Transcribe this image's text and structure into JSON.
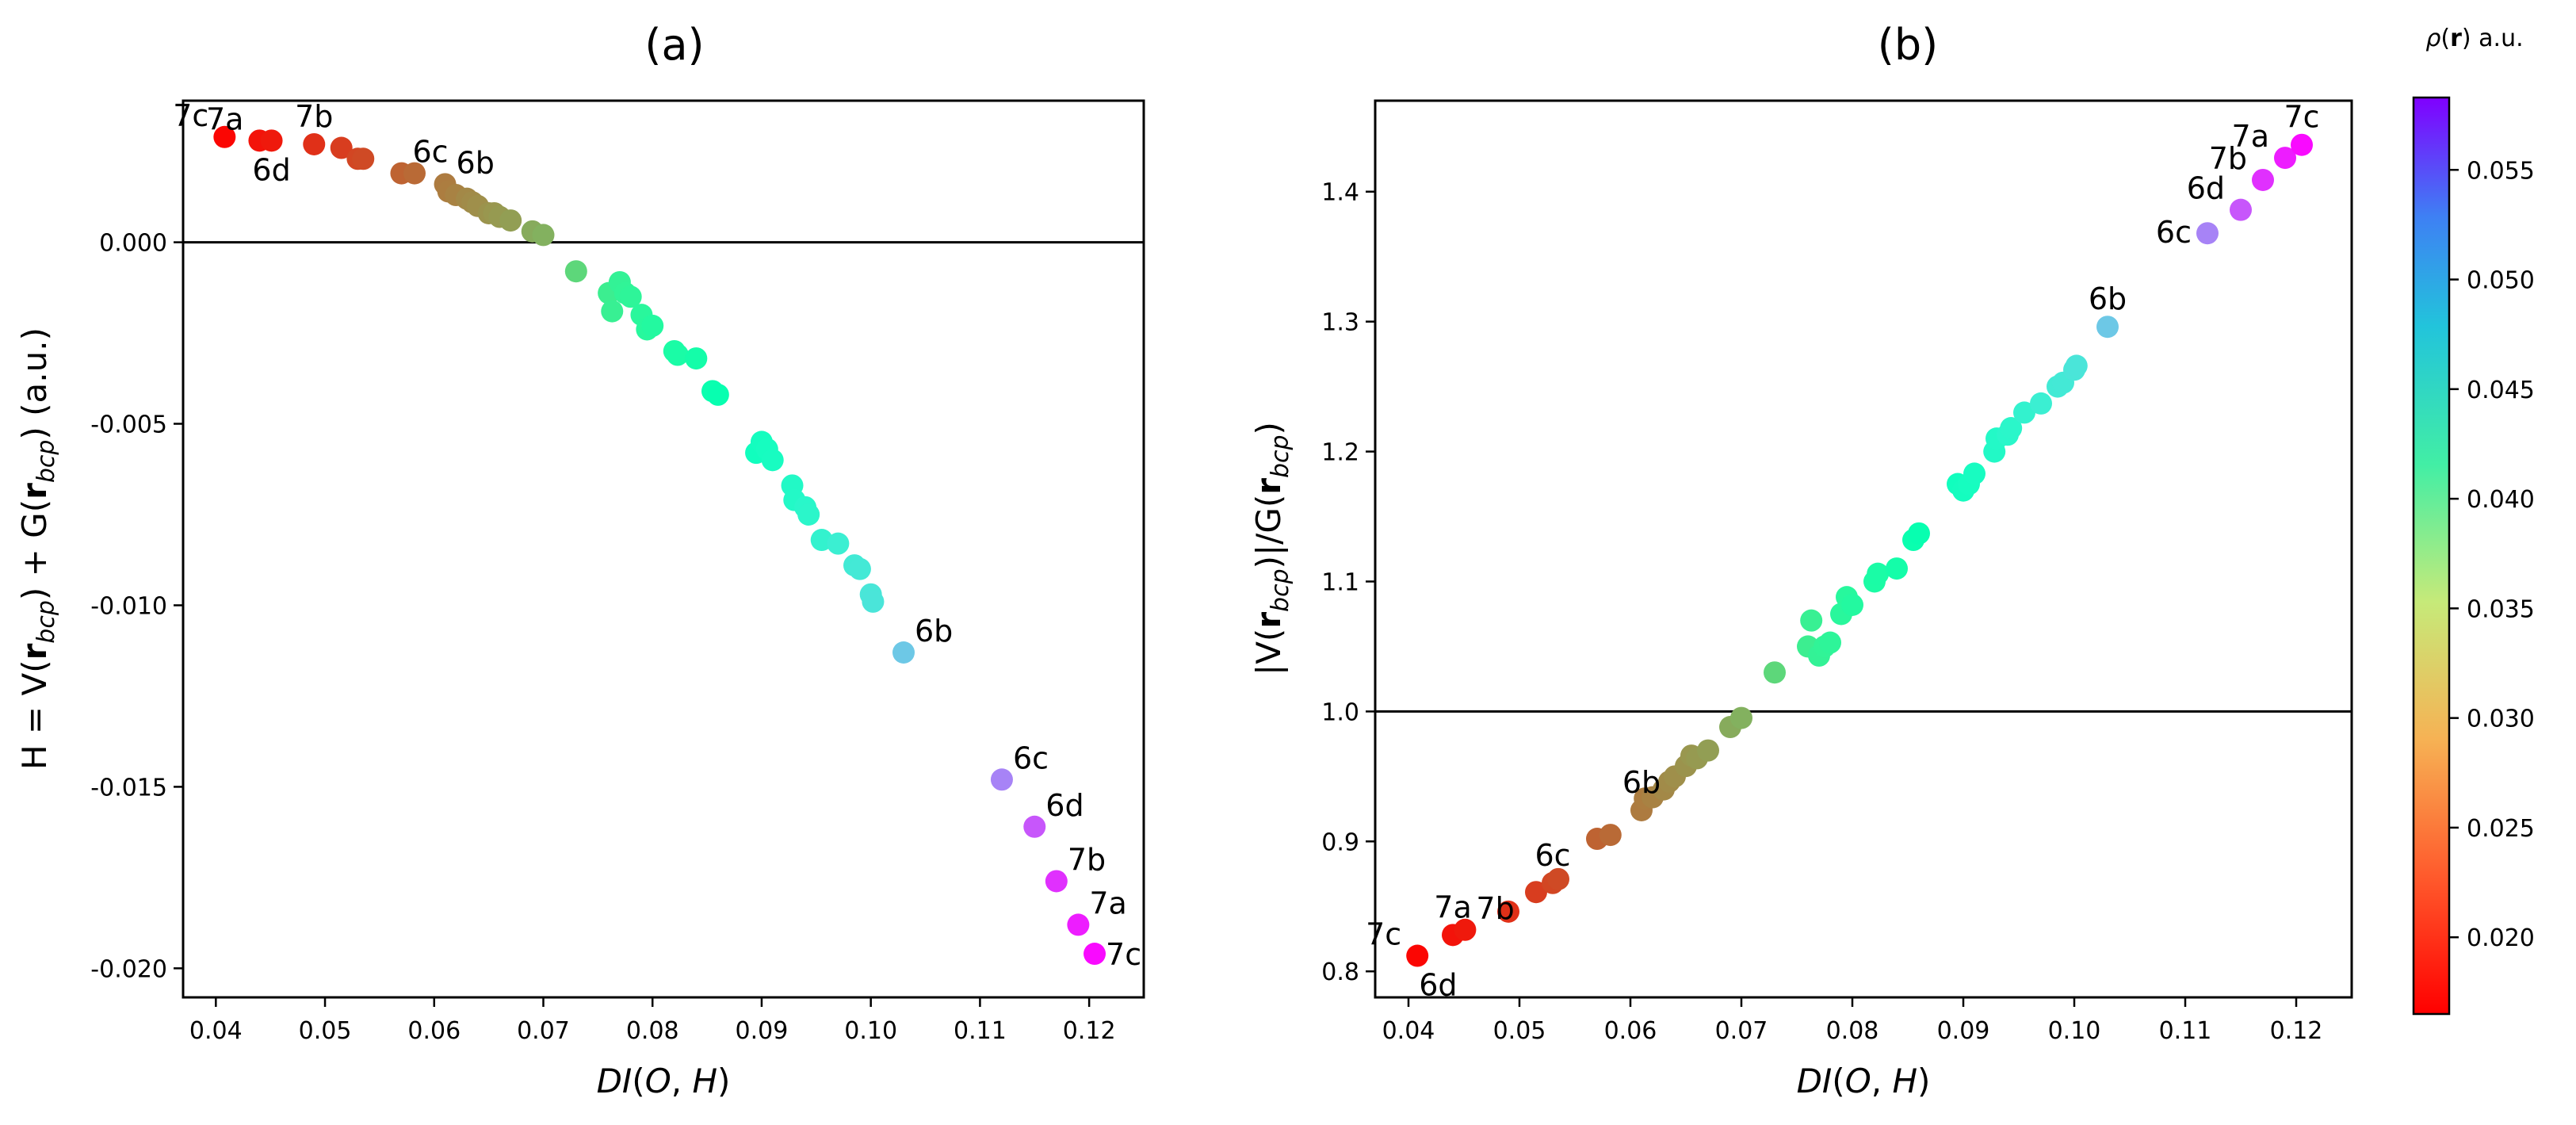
{
  "chart_data": [
    {
      "type": "scatter",
      "panel": "(a)",
      "title": "(a)",
      "xlabel": "DI(O, H)",
      "ylabel": "H = V(r_bcp) + G(r_bcp) (a.u.)",
      "xlim": [
        0.037,
        0.125
      ],
      "ylim": [
        -0.0208,
        0.0039
      ],
      "x_ticks": [
        0.04,
        0.05,
        0.06,
        0.07,
        0.08,
        0.09,
        0.1,
        0.11,
        0.12
      ],
      "x_tick_labels": [
        "0.04",
        "0.05",
        "0.06",
        "0.07",
        "0.08",
        "0.09",
        "0.10",
        "0.11",
        "0.12"
      ],
      "y_ticks": [
        0.0,
        -0.005,
        -0.01,
        -0.015,
        -0.02
      ],
      "y_tick_labels": [
        "0.000",
        "-0.005",
        "-0.010",
        "-0.015",
        "-0.020"
      ],
      "reference_line_y": 0.0,
      "color_by": "rho",
      "points": [
        {
          "x": 0.0408,
          "y": 0.0029,
          "rho": 0.0168
        },
        {
          "x": 0.044,
          "y": 0.0028,
          "rho": 0.0175
        },
        {
          "x": 0.0451,
          "y": 0.0028,
          "rho": 0.0178
        },
        {
          "x": 0.049,
          "y": 0.0027,
          "rho": 0.019
        },
        {
          "x": 0.0515,
          "y": 0.0026,
          "rho": 0.0197
        },
        {
          "x": 0.053,
          "y": 0.0023,
          "rho": 0.0202
        },
        {
          "x": 0.0535,
          "y": 0.0023,
          "rho": 0.0204
        },
        {
          "x": 0.057,
          "y": 0.0019,
          "rho": 0.0218
        },
        {
          "x": 0.0582,
          "y": 0.0019,
          "rho": 0.0222
        },
        {
          "x": 0.061,
          "y": 0.0016,
          "rho": 0.0232
        },
        {
          "x": 0.0613,
          "y": 0.0014,
          "rho": 0.0233
        },
        {
          "x": 0.062,
          "y": 0.0013,
          "rho": 0.0236
        },
        {
          "x": 0.063,
          "y": 0.0012,
          "rho": 0.024
        },
        {
          "x": 0.0635,
          "y": 0.0011,
          "rho": 0.0242
        },
        {
          "x": 0.064,
          "y": 0.001,
          "rho": 0.0244
        },
        {
          "x": 0.065,
          "y": 0.0008,
          "rho": 0.0247
        },
        {
          "x": 0.0655,
          "y": 0.0008,
          "rho": 0.0249
        },
        {
          "x": 0.066,
          "y": 0.0007,
          "rho": 0.0251
        },
        {
          "x": 0.067,
          "y": 0.0006,
          "rho": 0.0254
        },
        {
          "x": 0.069,
          "y": 0.0003,
          "rho": 0.0263
        },
        {
          "x": 0.07,
          "y": 0.0002,
          "rho": 0.0267
        },
        {
          "x": 0.073,
          "y": -0.0008,
          "rho": 0.0298
        },
        {
          "x": 0.076,
          "y": -0.0014,
          "rho": 0.0325
        },
        {
          "x": 0.0763,
          "y": -0.0019,
          "rho": 0.0328
        },
        {
          "x": 0.077,
          "y": -0.0011,
          "rho": 0.0332
        },
        {
          "x": 0.0775,
          "y": -0.0014,
          "rho": 0.0334
        },
        {
          "x": 0.078,
          "y": -0.0015,
          "rho": 0.0336
        },
        {
          "x": 0.079,
          "y": -0.002,
          "rho": 0.034
        },
        {
          "x": 0.0795,
          "y": -0.0024,
          "rho": 0.0342
        },
        {
          "x": 0.08,
          "y": -0.0023,
          "rho": 0.0345
        },
        {
          "x": 0.082,
          "y": -0.003,
          "rho": 0.0352
        },
        {
          "x": 0.0823,
          "y": -0.0031,
          "rho": 0.0353
        },
        {
          "x": 0.084,
          "y": -0.0032,
          "rho": 0.0358
        },
        {
          "x": 0.0855,
          "y": -0.0041,
          "rho": 0.0366
        },
        {
          "x": 0.086,
          "y": -0.0042,
          "rho": 0.0368
        },
        {
          "x": 0.0895,
          "y": -0.0058,
          "rho": 0.0388
        },
        {
          "x": 0.09,
          "y": -0.0055,
          "rho": 0.039
        },
        {
          "x": 0.0905,
          "y": -0.0057,
          "rho": 0.0392
        },
        {
          "x": 0.091,
          "y": -0.006,
          "rho": 0.0394
        },
        {
          "x": 0.0928,
          "y": -0.0067,
          "rho": 0.0402
        },
        {
          "x": 0.093,
          "y": -0.0071,
          "rho": 0.0403
        },
        {
          "x": 0.094,
          "y": -0.0073,
          "rho": 0.0408
        },
        {
          "x": 0.0943,
          "y": -0.0075,
          "rho": 0.0409
        },
        {
          "x": 0.0955,
          "y": -0.0082,
          "rho": 0.0416
        },
        {
          "x": 0.097,
          "y": -0.0083,
          "rho": 0.0422
        },
        {
          "x": 0.0985,
          "y": -0.0089,
          "rho": 0.0428
        },
        {
          "x": 0.099,
          "y": -0.009,
          "rho": 0.043
        },
        {
          "x": 0.1,
          "y": -0.0097,
          "rho": 0.0434
        },
        {
          "x": 0.1002,
          "y": -0.0099,
          "rho": 0.0435
        },
        {
          "x": 0.103,
          "y": -0.0113,
          "rho": 0.0463
        },
        {
          "x": 0.112,
          "y": -0.0148,
          "rho": 0.0511
        },
        {
          "x": 0.115,
          "y": -0.0161,
          "rho": 0.0537
        },
        {
          "x": 0.117,
          "y": -0.0176,
          "rho": 0.0558
        },
        {
          "x": 0.119,
          "y": -0.0188,
          "rho": 0.0568
        },
        {
          "x": 0.1205,
          "y": -0.0196,
          "rho": 0.0578
        }
      ],
      "annotations": [
        {
          "text": "7c",
          "x": 0.0408,
          "y": 0.0029,
          "pos": "upper-left"
        },
        {
          "text": "7a",
          "x": 0.044,
          "y": 0.0028,
          "pos": "upper-left"
        },
        {
          "text": "6d",
          "x": 0.0451,
          "y": 0.0028,
          "pos": "below"
        },
        {
          "text": "7b",
          "x": 0.049,
          "y": 0.0027,
          "pos": "above"
        },
        {
          "text": "6c",
          "x": 0.057,
          "y": 0.0019,
          "pos": "upper-right"
        },
        {
          "text": "6b",
          "x": 0.061,
          "y": 0.0016,
          "pos": "upper-right"
        },
        {
          "text": "6b",
          "x": 0.103,
          "y": -0.0113,
          "pos": "upper-right"
        },
        {
          "text": "6c",
          "x": 0.112,
          "y": -0.0148,
          "pos": "upper-right"
        },
        {
          "text": "6d",
          "x": 0.115,
          "y": -0.0161,
          "pos": "upper-right"
        },
        {
          "text": "7b",
          "x": 0.117,
          "y": -0.0176,
          "pos": "upper-right"
        },
        {
          "text": "7a",
          "x": 0.119,
          "y": -0.0188,
          "pos": "upper-right"
        },
        {
          "text": "7c",
          "x": 0.1205,
          "y": -0.0196,
          "pos": "right"
        }
      ]
    },
    {
      "type": "scatter",
      "panel": "(b)",
      "title": "(b)",
      "xlabel": "DI(O, H)",
      "ylabel": "|V(r_bcp)|/G(r_bcp)",
      "xlim": [
        0.037,
        0.125
      ],
      "ylim": [
        0.78,
        1.47
      ],
      "x_ticks": [
        0.04,
        0.05,
        0.06,
        0.07,
        0.08,
        0.09,
        0.1,
        0.11,
        0.12
      ],
      "x_tick_labels": [
        "0.04",
        "0.05",
        "0.06",
        "0.07",
        "0.08",
        "0.09",
        "0.10",
        "0.11",
        "0.12"
      ],
      "y_ticks": [
        0.8,
        0.9,
        1.0,
        1.1,
        1.2,
        1.3,
        1.4
      ],
      "y_tick_labels": [
        "0.8",
        "0.9",
        "1.0",
        "1.1",
        "1.2",
        "1.3",
        "1.4"
      ],
      "reference_line_y": 1.0,
      "color_by": "rho",
      "points": [
        {
          "x": 0.0408,
          "y": 0.812,
          "rho": 0.0168
        },
        {
          "x": 0.044,
          "y": 0.828,
          "rho": 0.0175
        },
        {
          "x": 0.0451,
          "y": 0.832,
          "rho": 0.0178
        },
        {
          "x": 0.049,
          "y": 0.846,
          "rho": 0.019
        },
        {
          "x": 0.0515,
          "y": 0.861,
          "rho": 0.0197
        },
        {
          "x": 0.053,
          "y": 0.868,
          "rho": 0.0202
        },
        {
          "x": 0.0535,
          "y": 0.871,
          "rho": 0.0204
        },
        {
          "x": 0.057,
          "y": 0.902,
          "rho": 0.0218
        },
        {
          "x": 0.0582,
          "y": 0.905,
          "rho": 0.0222
        },
        {
          "x": 0.061,
          "y": 0.924,
          "rho": 0.0232
        },
        {
          "x": 0.0613,
          "y": 0.933,
          "rho": 0.0233
        },
        {
          "x": 0.062,
          "y": 0.934,
          "rho": 0.0236
        },
        {
          "x": 0.063,
          "y": 0.94,
          "rho": 0.024
        },
        {
          "x": 0.0635,
          "y": 0.946,
          "rho": 0.0242
        },
        {
          "x": 0.064,
          "y": 0.95,
          "rho": 0.0244
        },
        {
          "x": 0.065,
          "y": 0.958,
          "rho": 0.0247
        },
        {
          "x": 0.0655,
          "y": 0.966,
          "rho": 0.0249
        },
        {
          "x": 0.066,
          "y": 0.964,
          "rho": 0.0251
        },
        {
          "x": 0.067,
          "y": 0.97,
          "rho": 0.0254
        },
        {
          "x": 0.069,
          "y": 0.988,
          "rho": 0.0263
        },
        {
          "x": 0.07,
          "y": 0.995,
          "rho": 0.0267
        },
        {
          "x": 0.073,
          "y": 1.03,
          "rho": 0.0298
        },
        {
          "x": 0.076,
          "y": 1.05,
          "rho": 0.0325
        },
        {
          "x": 0.0763,
          "y": 1.07,
          "rho": 0.0328
        },
        {
          "x": 0.077,
          "y": 1.043,
          "rho": 0.0332
        },
        {
          "x": 0.0775,
          "y": 1.05,
          "rho": 0.0334
        },
        {
          "x": 0.078,
          "y": 1.053,
          "rho": 0.0336
        },
        {
          "x": 0.079,
          "y": 1.075,
          "rho": 0.034
        },
        {
          "x": 0.0795,
          "y": 1.088,
          "rho": 0.0342
        },
        {
          "x": 0.08,
          "y": 1.082,
          "rho": 0.0345
        },
        {
          "x": 0.082,
          "y": 1.1,
          "rho": 0.0352
        },
        {
          "x": 0.0823,
          "y": 1.106,
          "rho": 0.0353
        },
        {
          "x": 0.084,
          "y": 1.11,
          "rho": 0.0358
        },
        {
          "x": 0.0855,
          "y": 1.132,
          "rho": 0.0366
        },
        {
          "x": 0.086,
          "y": 1.137,
          "rho": 0.0368
        },
        {
          "x": 0.0895,
          "y": 1.175,
          "rho": 0.0388
        },
        {
          "x": 0.09,
          "y": 1.17,
          "rho": 0.039
        },
        {
          "x": 0.0905,
          "y": 1.175,
          "rho": 0.0392
        },
        {
          "x": 0.091,
          "y": 1.183,
          "rho": 0.0394
        },
        {
          "x": 0.0928,
          "y": 1.2,
          "rho": 0.0402
        },
        {
          "x": 0.093,
          "y": 1.21,
          "rho": 0.0403
        },
        {
          "x": 0.094,
          "y": 1.213,
          "rho": 0.0408
        },
        {
          "x": 0.0943,
          "y": 1.218,
          "rho": 0.0409
        },
        {
          "x": 0.0955,
          "y": 1.23,
          "rho": 0.0416
        },
        {
          "x": 0.097,
          "y": 1.237,
          "rho": 0.0422
        },
        {
          "x": 0.0985,
          "y": 1.25,
          "rho": 0.0428
        },
        {
          "x": 0.099,
          "y": 1.253,
          "rho": 0.043
        },
        {
          "x": 0.1,
          "y": 1.263,
          "rho": 0.0434
        },
        {
          "x": 0.1002,
          "y": 1.266,
          "rho": 0.0435
        },
        {
          "x": 0.103,
          "y": 1.296,
          "rho": 0.0463
        },
        {
          "x": 0.112,
          "y": 1.368,
          "rho": 0.0511
        },
        {
          "x": 0.115,
          "y": 1.386,
          "rho": 0.0537
        },
        {
          "x": 0.117,
          "y": 1.409,
          "rho": 0.0558
        },
        {
          "x": 0.119,
          "y": 1.426,
          "rho": 0.0568
        },
        {
          "x": 0.1205,
          "y": 1.436,
          "rho": 0.0578
        }
      ],
      "annotations": [
        {
          "text": "7c",
          "x": 0.0408,
          "y": 0.812,
          "pos": "upper-left"
        },
        {
          "text": "6d",
          "x": 0.0408,
          "y": 0.812,
          "pos": "lower-right"
        },
        {
          "text": "7a",
          "x": 0.044,
          "y": 0.828,
          "pos": "above"
        },
        {
          "text": "7b",
          "x": 0.0451,
          "y": 0.832,
          "pos": "upper-right"
        },
        {
          "text": "6c",
          "x": 0.053,
          "y": 0.868,
          "pos": "above"
        },
        {
          "text": "6b",
          "x": 0.061,
          "y": 0.924,
          "pos": "above"
        },
        {
          "text": "6b",
          "x": 0.103,
          "y": 1.296,
          "pos": "above"
        },
        {
          "text": "6c",
          "x": 0.112,
          "y": 1.368,
          "pos": "left"
        },
        {
          "text": "6d",
          "x": 0.115,
          "y": 1.386,
          "pos": "upper-left"
        },
        {
          "text": "7b",
          "x": 0.117,
          "y": 1.409,
          "pos": "upper-left"
        },
        {
          "text": "7a",
          "x": 0.119,
          "y": 1.426,
          "pos": "upper-left"
        },
        {
          "text": "7c",
          "x": 0.1205,
          "y": 1.436,
          "pos": "above"
        }
      ]
    }
  ],
  "colorbar": {
    "label": "ρ(r) a.u.",
    "colormap": "rainbow",
    "vmin": 0.0165,
    "vmax": 0.0583,
    "ticks": [
      0.02,
      0.025,
      0.03,
      0.035,
      0.04,
      0.045,
      0.05,
      0.055
    ],
    "tick_labels": [
      "0.020",
      "0.025",
      "0.030",
      "0.035",
      "0.040",
      "0.045",
      "0.050",
      "0.055"
    ]
  }
}
